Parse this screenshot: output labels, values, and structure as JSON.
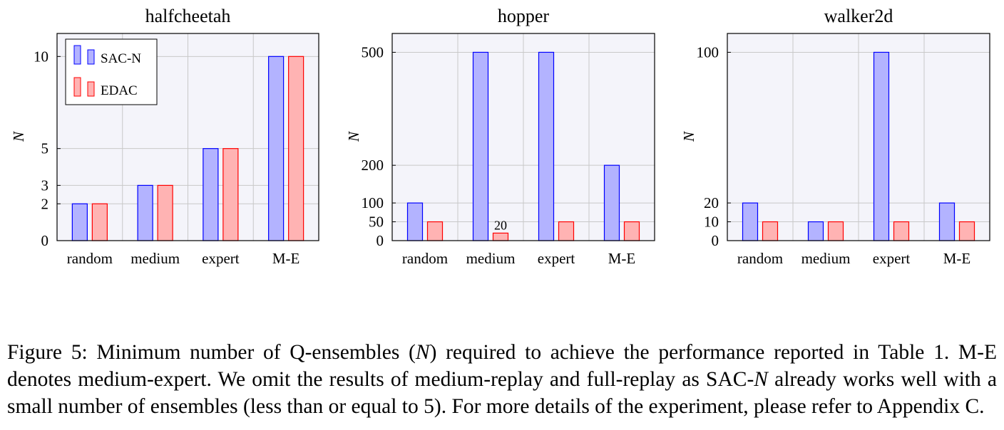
{
  "chart_data": [
    {
      "type": "bar",
      "title": "halfcheetah",
      "ylabel": "N",
      "categories": [
        "random",
        "medium",
        "expert",
        "M-E"
      ],
      "ylim": [
        0,
        11.25
      ],
      "yticks": [
        0,
        2,
        3,
        5,
        10
      ],
      "grid": true,
      "legend": "top-left",
      "series": [
        {
          "name": "SAC-N",
          "values": [
            2,
            3,
            5,
            10
          ]
        },
        {
          "name": "EDAC",
          "values": [
            2,
            3,
            5,
            10
          ]
        }
      ]
    },
    {
      "type": "bar",
      "title": "hopper",
      "ylabel": "N",
      "categories": [
        "random",
        "medium",
        "expert",
        "M-E"
      ],
      "ylim": [
        0,
        550
      ],
      "yticks": [
        0,
        50,
        100,
        200,
        500
      ],
      "grid": true,
      "annotations": [
        {
          "category": "medium",
          "series": "EDAC",
          "text": "20"
        }
      ],
      "series": [
        {
          "name": "SAC-N",
          "values": [
            100,
            500,
            500,
            200
          ]
        },
        {
          "name": "EDAC",
          "values": [
            50,
            20,
            50,
            50
          ]
        }
      ]
    },
    {
      "type": "bar",
      "title": "walker2d",
      "ylabel": "N",
      "categories": [
        "random",
        "medium",
        "expert",
        "M-E"
      ],
      "ylim": [
        0,
        110
      ],
      "yticks": [
        0,
        10,
        20,
        100
      ],
      "grid": true,
      "series": [
        {
          "name": "SAC-N",
          "values": [
            20,
            10,
            100,
            20
          ]
        },
        {
          "name": "EDAC",
          "values": [
            10,
            10,
            10,
            10
          ]
        }
      ]
    }
  ],
  "colors": {
    "sac_fill": "#b3b3ff",
    "sac_stroke": "#0000ff",
    "edac_fill": "#ffb3b3",
    "edac_stroke": "#ff0000",
    "plot_bg": "#f4f4fa",
    "grid": "#c8c8c8"
  },
  "caption": {
    "label": "Figure 5:",
    "text_1": " Minimum number of Q-ensembles (",
    "symbol": "N",
    "text_2": ") required to achieve the performance reported in Table 1. M-E denotes medium-expert. We omit the results of medium-replay and full-replay as SAC-",
    "text_3": " already works well with a small number of ensembles (less than or equal to 5). For more details of the experiment, please refer to Appendix C."
  }
}
